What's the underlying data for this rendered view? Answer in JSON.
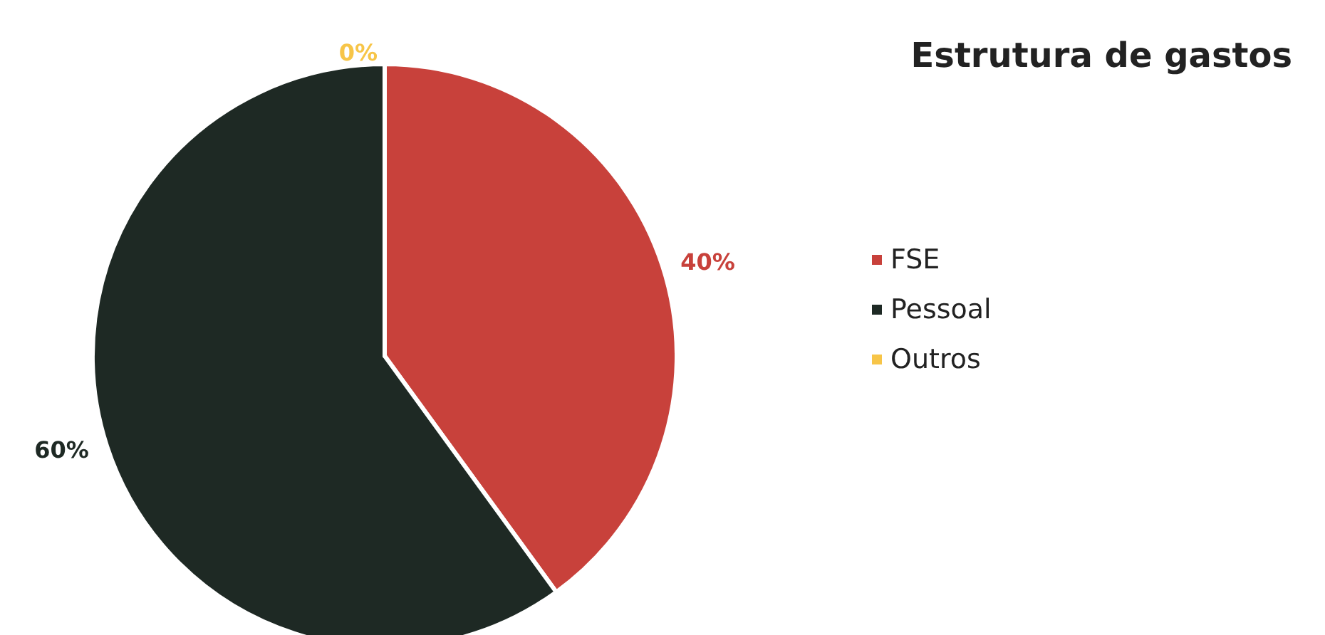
{
  "chart_data": {
    "type": "pie",
    "title": "Estrutura de gastos",
    "categories": [
      "FSE",
      "Pessoal",
      "Outros"
    ],
    "values": [
      40,
      60,
      0
    ],
    "colors": [
      "#c8413b",
      "#1e2924",
      "#f7c548"
    ],
    "value_labels": [
      "40%",
      "60%",
      "0%"
    ],
    "legend": "right"
  }
}
